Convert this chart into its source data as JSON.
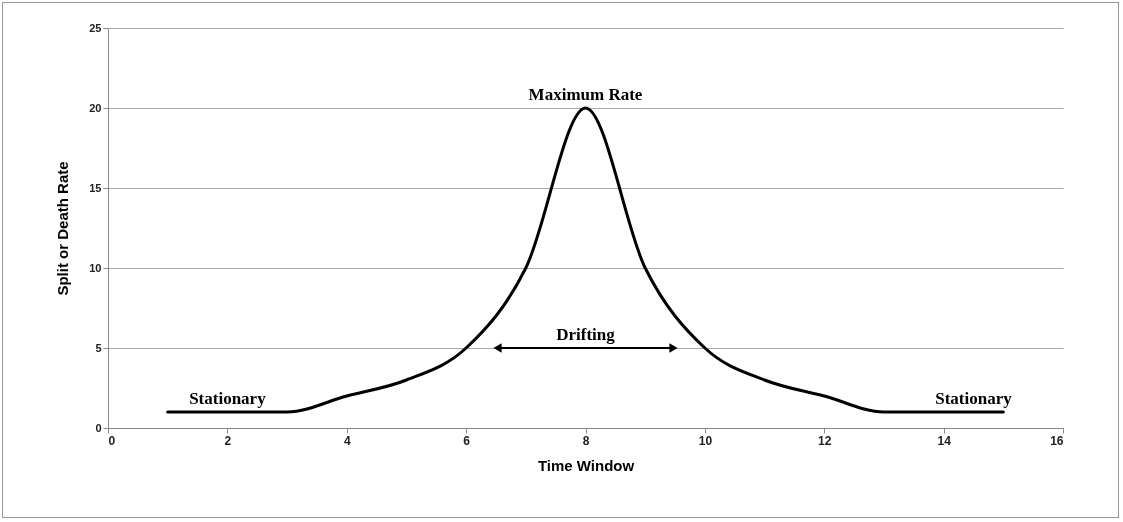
{
  "chart_data": {
    "type": "line",
    "xlabel": "Time Window",
    "ylabel": "Split or Death Rate",
    "x": [
      1,
      2,
      3,
      4,
      5,
      6,
      7,
      8,
      9,
      10,
      11,
      12,
      13,
      14,
      15
    ],
    "series": [
      {
        "color": "#000000",
        "values": [
          1,
          1,
          1,
          2,
          3,
          5,
          10,
          20,
          10,
          5,
          3,
          2,
          1,
          1,
          1
        ]
      }
    ],
    "xlim": [
      0,
      16
    ],
    "xticks": [
      0,
      2,
      4,
      6,
      8,
      10,
      12,
      14,
      16
    ],
    "ylim": [
      0,
      25
    ],
    "yticks": [
      0,
      5,
      10,
      15,
      20,
      25
    ],
    "grid": "y",
    "annotations": [
      {
        "text": "Maximum Rate",
        "x": 8,
        "y": 20
      },
      {
        "text": "Stationary",
        "x": 2,
        "y": 1
      },
      {
        "text": "Stationary",
        "x": 14.5,
        "y": 1
      },
      "Drifting"
    ]
  }
}
